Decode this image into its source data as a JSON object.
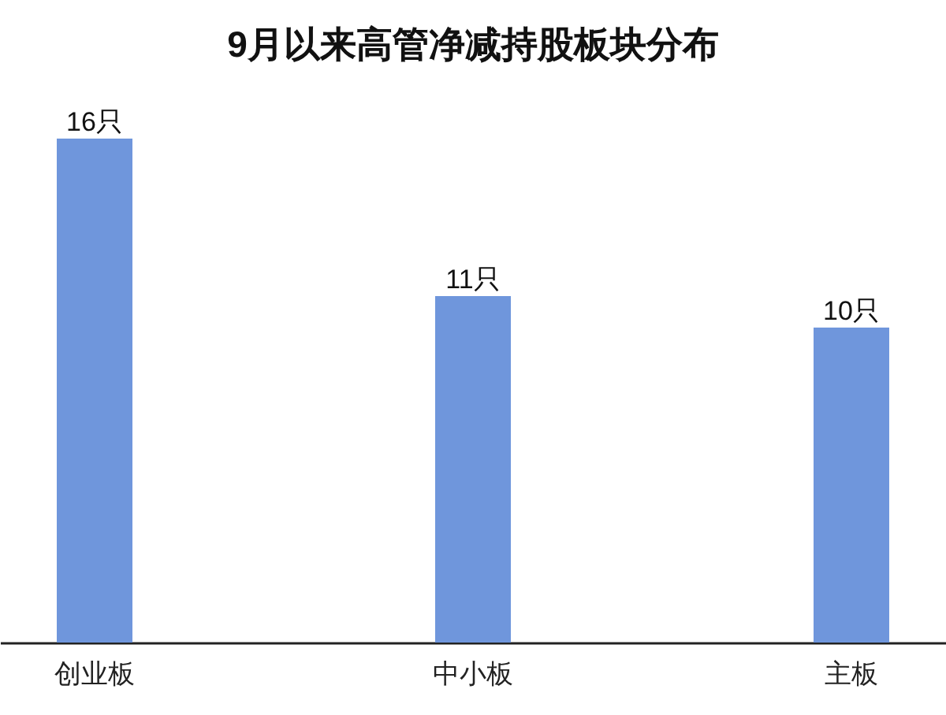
{
  "chart_data": {
    "type": "bar",
    "title": "9月以来高管净减持股板块分布",
    "categories": [
      "创业板",
      "中小板",
      "主板"
    ],
    "values": [
      16,
      11,
      10
    ],
    "value_labels": [
      "16只",
      "11只",
      "10只"
    ],
    "color": "#6f96dc"
  }
}
